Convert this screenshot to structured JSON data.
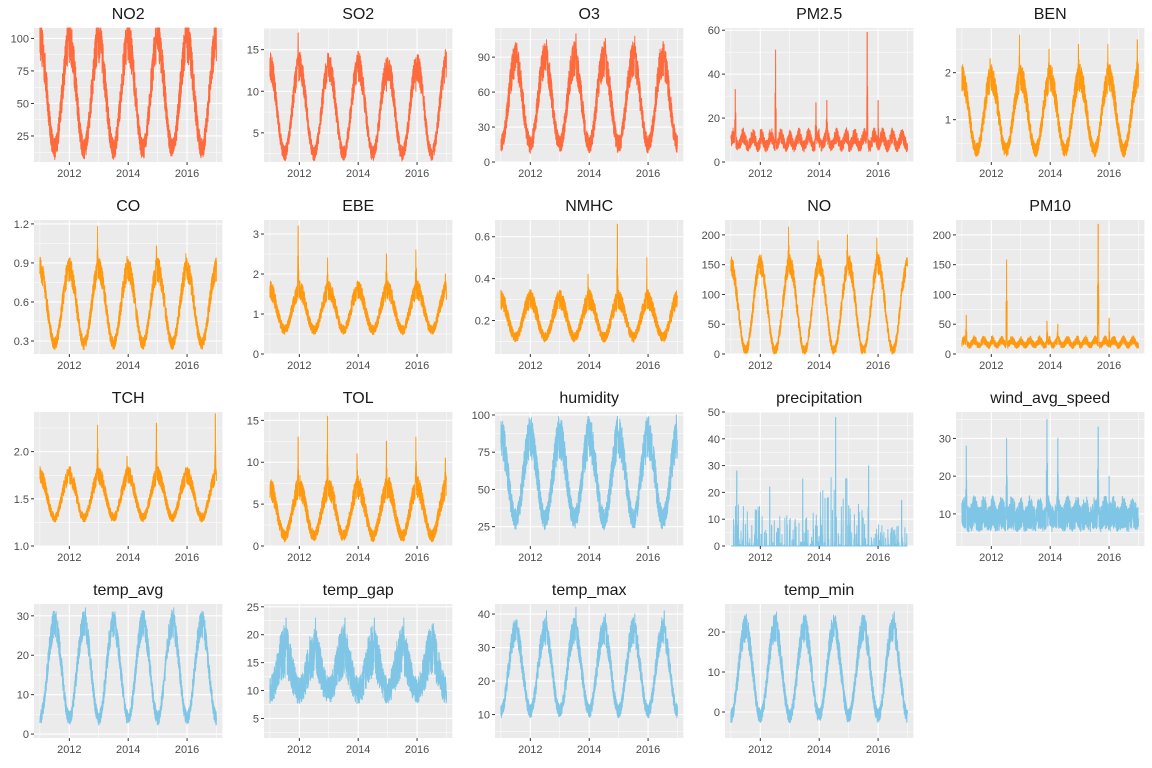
{
  "colors": {
    "orange_red": "#ff6a3d",
    "orange": "#ff9a10",
    "sky_blue": "#7ec5e6",
    "panel_bg": "#ebebeb",
    "grid_major": "#ffffff",
    "axis_text": "#4d4d4d"
  },
  "chart_data": [
    {
      "type": "line",
      "title": "NO2",
      "color": "#ff6a3d",
      "x_range": [
        2010.8,
        2017.2
      ],
      "xticks": [
        2012,
        2014,
        2016
      ],
      "xtick_labels": [
        "2012",
        "2014",
        "2016"
      ],
      "ylim": [
        5,
        108
      ],
      "yticks": [
        25,
        50,
        75,
        100
      ],
      "ytick_labels": [
        "25",
        "50",
        "75",
        "100"
      ],
      "baseline": 42,
      "trough": 15,
      "peak": 98,
      "peaks": [
        105,
        102,
        104,
        104,
        103,
        92
      ],
      "noise": 14,
      "seasonal": "winter",
      "grid": true
    },
    {
      "type": "line",
      "title": "SO2",
      "color": "#ff6a3d",
      "x_range": [
        2010.8,
        2017.2
      ],
      "xticks": [
        2012,
        2014,
        2016
      ],
      "xtick_labels": [
        "2012",
        "2014",
        "2016"
      ],
      "ylim": [
        1.5,
        17.6
      ],
      "yticks": [
        5,
        10,
        15
      ],
      "ytick_labels": [
        "5",
        "10",
        "15"
      ],
      "baseline": 6,
      "trough": 2.5,
      "peak": 13,
      "peaks": [
        17,
        14,
        13,
        10,
        10,
        15
      ],
      "noise": 1.5,
      "seasonal": "winter",
      "grid": true
    },
    {
      "type": "line",
      "title": "O3",
      "color": "#ff6a3d",
      "x_range": [
        2010.8,
        2017.2
      ],
      "xticks": [
        2012,
        2014,
        2016
      ],
      "xtick_labels": [
        "2012",
        "2014",
        "2016"
      ],
      "ylim": [
        0,
        115
      ],
      "yticks": [
        0,
        30,
        60,
        90
      ],
      "ytick_labels": [
        "0",
        "30",
        "60",
        "90"
      ],
      "baseline": 45,
      "trough": 15,
      "peak": 88,
      "peaks": [
        98,
        105,
        110,
        106,
        108,
        93
      ],
      "noise": 13,
      "seasonal": "summer",
      "grid": true
    },
    {
      "type": "line",
      "title": "PM2.5",
      "color": "#ff6a3d",
      "x_range": [
        2010.8,
        2017.2
      ],
      "xticks": [
        2012,
        2014,
        2016
      ],
      "xtick_labels": [
        "2012",
        "2014",
        "2016"
      ],
      "ylim": [
        0,
        61
      ],
      "yticks": [
        0,
        20,
        40,
        60
      ],
      "ytick_labels": [
        "0",
        "20",
        "40",
        "60"
      ],
      "baseline": 11,
      "trough": 6,
      "peak": 18,
      "peaks": [
        33,
        51,
        27,
        28,
        59,
        28
      ],
      "noise": 4,
      "seasonal": "flat",
      "grid": true
    },
    {
      "type": "line",
      "title": "BEN",
      "color": "#ff9a10",
      "x_range": [
        2010.8,
        2017.2
      ],
      "xticks": [
        2012,
        2014,
        2016
      ],
      "xtick_labels": [
        "2012",
        "2014",
        "2016"
      ],
      "ylim": [
        0.1,
        2.95
      ],
      "yticks": [
        1,
        2
      ],
      "ytick_labels": [
        "1",
        "2"
      ],
      "baseline": 0.8,
      "trough": 0.35,
      "peak": 1.9,
      "peaks": [
        2.3,
        2.8,
        2.5,
        2.6,
        2.6,
        2.7
      ],
      "noise": 0.25,
      "seasonal": "winter",
      "grid": true
    },
    {
      "type": "line",
      "title": "CO",
      "color": "#ff9a10",
      "x_range": [
        2010.8,
        2017.2
      ],
      "xticks": [
        2012,
        2014,
        2016
      ],
      "xtick_labels": [
        "2012",
        "2014",
        "2016"
      ],
      "ylim": [
        0.2,
        1.23
      ],
      "yticks": [
        0.3,
        0.6,
        0.9,
        1.2
      ],
      "ytick_labels": [
        "0.3",
        "0.6",
        "0.9",
        "1.2"
      ],
      "baseline": 0.42,
      "trough": 0.28,
      "peak": 0.85,
      "peaks": [
        0.85,
        1.18,
        0.95,
        1.03,
        0.97,
        0.87
      ],
      "noise": 0.08,
      "seasonal": "winter",
      "grid": true
    },
    {
      "type": "line",
      "title": "EBE",
      "color": "#ff9a10",
      "x_range": [
        2010.8,
        2017.2
      ],
      "xticks": [
        2012,
        2014,
        2016
      ],
      "xtick_labels": [
        "2012",
        "2014",
        "2016"
      ],
      "ylim": [
        0,
        3.35
      ],
      "yticks": [
        0,
        1,
        2,
        3
      ],
      "ytick_labels": [
        "0",
        "1",
        "2",
        "3"
      ],
      "baseline": 0.9,
      "trough": 0.6,
      "peak": 1.6,
      "peaks": [
        3.2,
        2.4,
        1.8,
        2.5,
        2.6,
        2.0
      ],
      "noise": 0.2,
      "seasonal": "winter",
      "grid": true
    },
    {
      "type": "line",
      "title": "NMHC",
      "color": "#ff9a10",
      "x_range": [
        2010.8,
        2017.2
      ],
      "xticks": [
        2012,
        2014,
        2016
      ],
      "xtick_labels": [
        "2012",
        "2014",
        "2016"
      ],
      "ylim": [
        0.04,
        0.68
      ],
      "yticks": [
        0.2,
        0.4,
        0.6
      ],
      "ytick_labels": [
        "0.2",
        "0.4",
        "0.6"
      ],
      "baseline": 0.2,
      "trough": 0.12,
      "peak": 0.3,
      "peaks": [
        0.3,
        0.32,
        0.42,
        0.66,
        0.5,
        0.27
      ],
      "noise": 0.04,
      "seasonal": "winter",
      "grid": true
    },
    {
      "type": "line",
      "title": "NO",
      "color": "#ff9a10",
      "x_range": [
        2010.8,
        2017.2
      ],
      "xticks": [
        2012,
        2014,
        2016
      ],
      "xtick_labels": [
        "2012",
        "2014",
        "2016"
      ],
      "ylim": [
        0,
        225
      ],
      "yticks": [
        0,
        50,
        100,
        150,
        200
      ],
      "ytick_labels": [
        "0",
        "50",
        "100",
        "150",
        "200"
      ],
      "baseline": 25,
      "trough": 5,
      "peak": 150,
      "peaks": [
        145,
        213,
        190,
        200,
        195,
        150
      ],
      "noise": 15,
      "seasonal": "winter",
      "grid": true
    },
    {
      "type": "line",
      "title": "PM10",
      "color": "#ff9a10",
      "x_range": [
        2010.8,
        2017.2
      ],
      "xticks": [
        2012,
        2014,
        2016
      ],
      "xtick_labels": [
        "2012",
        "2014",
        "2016"
      ],
      "ylim": [
        0,
        225
      ],
      "yticks": [
        0,
        50,
        100,
        150,
        200
      ],
      "ytick_labels": [
        "0",
        "50",
        "100",
        "150",
        "200"
      ],
      "baseline": 22,
      "trough": 12,
      "peak": 35,
      "peaks": [
        65,
        158,
        55,
        50,
        218,
        60
      ],
      "noise": 8,
      "seasonal": "flat",
      "grid": true
    },
    {
      "type": "line",
      "title": "TCH",
      "color": "#ff9a10",
      "x_range": [
        2010.8,
        2017.2
      ],
      "xticks": [
        2012,
        2014,
        2016
      ],
      "xtick_labels": [
        "2012",
        "2014",
        "2016"
      ],
      "ylim": [
        1.0,
        2.42
      ],
      "yticks": [
        1.0,
        1.5,
        2.0
      ],
      "ytick_labels": [
        "1.0",
        "1.5",
        "2.0"
      ],
      "baseline": 1.4,
      "trough": 1.3,
      "peak": 1.75,
      "peaks": [
        1.75,
        2.28,
        1.95,
        2.3,
        1.8,
        2.4
      ],
      "noise": 0.08,
      "seasonal": "winter",
      "grid": true
    },
    {
      "type": "line",
      "title": "TOL",
      "color": "#ff9a10",
      "x_range": [
        2010.8,
        2017.2
      ],
      "xticks": [
        2012,
        2014,
        2016
      ],
      "xtick_labels": [
        "2012",
        "2014",
        "2016"
      ],
      "ylim": [
        0,
        16
      ],
      "yticks": [
        0,
        5,
        10,
        15
      ],
      "ytick_labels": [
        "0",
        "5",
        "10",
        "15"
      ],
      "baseline": 2.5,
      "trough": 1.2,
      "peak": 7,
      "peaks": [
        13,
        15.5,
        11,
        12.5,
        13,
        10.5
      ],
      "noise": 1.2,
      "seasonal": "winter",
      "grid": true
    },
    {
      "type": "line",
      "title": "humidity",
      "color": "#7ec5e6",
      "x_range": [
        2010.8,
        2017.2
      ],
      "xticks": [
        2012,
        2014,
        2016
      ],
      "xtick_labels": [
        "2012",
        "2014",
        "2016"
      ],
      "ylim": [
        12,
        102
      ],
      "yticks": [
        25,
        50,
        75,
        100
      ],
      "ytick_labels": [
        "25",
        "50",
        "75",
        "100"
      ],
      "baseline": 60,
      "trough": 30,
      "peak": 85,
      "peaks": [
        98,
        99,
        99,
        99,
        98,
        100
      ],
      "noise": 12,
      "seasonal": "winter",
      "grid": true
    },
    {
      "type": "line",
      "title": "precipitation",
      "color": "#7ec5e6",
      "x_range": [
        2010.8,
        2017.2
      ],
      "xticks": [
        2012,
        2014,
        2016
      ],
      "xtick_labels": [
        "2012",
        "2014",
        "2016"
      ],
      "ylim": [
        0,
        50
      ],
      "yticks": [
        0,
        10,
        20,
        30,
        40,
        50
      ],
      "ytick_labels": [
        "0",
        "10",
        "20",
        "30",
        "40",
        "50"
      ],
      "baseline": 0,
      "trough": 0,
      "peak": 0,
      "peaks": [
        28,
        22,
        25,
        48,
        30,
        17
      ],
      "noise": 0,
      "seasonal": "precip",
      "grid": true
    },
    {
      "type": "line",
      "title": "wind_avg_speed",
      "color": "#7ec5e6",
      "x_range": [
        2010.8,
        2017.2
      ],
      "xticks": [
        2012,
        2014,
        2016
      ],
      "xtick_labels": [
        "2012",
        "2014",
        "2016"
      ],
      "ylim": [
        1.5,
        37
      ],
      "yticks": [
        10,
        20,
        30
      ],
      "ytick_labels": [
        "10",
        "20",
        "30"
      ],
      "baseline": 10,
      "trough": 8,
      "peak": 13,
      "peaks": [
        28,
        30,
        35,
        30,
        33,
        20
      ],
      "noise": 5,
      "seasonal": "flat",
      "grid": true
    },
    {
      "type": "line",
      "title": "temp_avg",
      "color": "#7ec5e6",
      "x_range": [
        2010.8,
        2017.2
      ],
      "xticks": [
        2012,
        2014,
        2016
      ],
      "xtick_labels": [
        "2012",
        "2014",
        "2016"
      ],
      "ylim": [
        -1,
        33
      ],
      "yticks": [
        0,
        10,
        20,
        30
      ],
      "ytick_labels": [
        "0",
        "10",
        "20",
        "30"
      ],
      "baseline": 15,
      "trough": 4,
      "peak": 28,
      "peaks": [
        31,
        32,
        31,
        31,
        32,
        31
      ],
      "noise": 3,
      "seasonal": "summer",
      "grid": true
    },
    {
      "type": "line",
      "title": "temp_gap",
      "color": "#7ec5e6",
      "x_range": [
        2010.8,
        2017.2
      ],
      "xticks": [
        2012,
        2014,
        2016
      ],
      "xtick_labels": [
        "2012",
        "2014",
        "2016"
      ],
      "ylim": [
        1.5,
        25.5
      ],
      "yticks": [
        5,
        10,
        15,
        20,
        25
      ],
      "ytick_labels": [
        "5",
        "10",
        "15",
        "20",
        "25"
      ],
      "baseline": 13,
      "trough": 10,
      "peak": 17,
      "peaks": [
        23,
        23,
        23,
        23,
        23,
        22
      ],
      "noise": 4,
      "seasonal": "summer",
      "grid": true
    },
    {
      "type": "line",
      "title": "temp_max",
      "color": "#7ec5e6",
      "x_range": [
        2010.8,
        2017.2
      ],
      "xticks": [
        2012,
        2014,
        2016
      ],
      "xtick_labels": [
        "2012",
        "2014",
        "2016"
      ],
      "ylim": [
        3,
        43
      ],
      "yticks": [
        10,
        20,
        30,
        40
      ],
      "ytick_labels": [
        "10",
        "20",
        "30",
        "40"
      ],
      "baseline": 22,
      "trough": 11,
      "peak": 35,
      "peaks": [
        38,
        41,
        42,
        40,
        40,
        41
      ],
      "noise": 3.5,
      "seasonal": "summer",
      "grid": true
    },
    {
      "type": "line",
      "title": "temp_min",
      "color": "#7ec5e6",
      "x_range": [
        2010.8,
        2017.2
      ],
      "xticks": [
        2012,
        2014,
        2016
      ],
      "xtick_labels": [
        "2012",
        "2014",
        "2016"
      ],
      "ylim": [
        -6.5,
        27
      ],
      "yticks": [
        0,
        10,
        20
      ],
      "ytick_labels": [
        "0",
        "10",
        "20"
      ],
      "baseline": 9,
      "trough": -1,
      "peak": 21,
      "peaks": [
        23,
        25,
        24,
        24,
        24,
        25
      ],
      "noise": 3,
      "seasonal": "summer",
      "grid": true
    }
  ]
}
